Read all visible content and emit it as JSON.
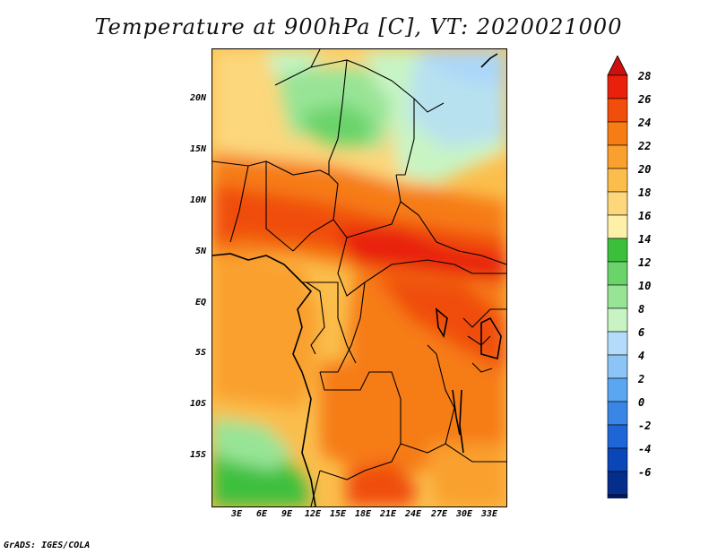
{
  "title": "Temperature at 900hPa [C], VT: 2020021000",
  "footer": "GrADS: IGES/COLA",
  "map": {
    "region": "Central Africa",
    "lat_range": [
      -20,
      24
    ],
    "lon_range": [
      0,
      35
    ],
    "y_ticks": [
      "20N",
      "15N",
      "10N",
      "5N",
      "EQ",
      "5S",
      "10S",
      "15S"
    ],
    "x_ticks": [
      "3E",
      "6E",
      "9E",
      "12E",
      "15E",
      "18E",
      "21E",
      "24E",
      "27E",
      "30E",
      "33E"
    ]
  },
  "colorbar": {
    "labels": [
      "28",
      "26",
      "24",
      "22",
      "20",
      "18",
      "16",
      "14",
      "12",
      "10",
      "8",
      "6",
      "4",
      "2",
      "0",
      "-2",
      "-4",
      "-6"
    ],
    "colors": [
      "#e8200c",
      "#f04e0a",
      "#f67c14",
      "#f9a02e",
      "#fbbe4c",
      "#fcd77b",
      "#fdf0a8",
      "#3cc03c",
      "#6ad46a",
      "#98e496",
      "#c8f4c4",
      "#b4dcfa",
      "#8cc4f6",
      "#5aa6f0",
      "#3a86e6",
      "#1e66d6",
      "#0a46b8",
      "#052e8c",
      "#021a5c"
    ],
    "top_arrow_color": "#cc1010",
    "bottom_arrow_color": "#e6e8fa"
  }
}
